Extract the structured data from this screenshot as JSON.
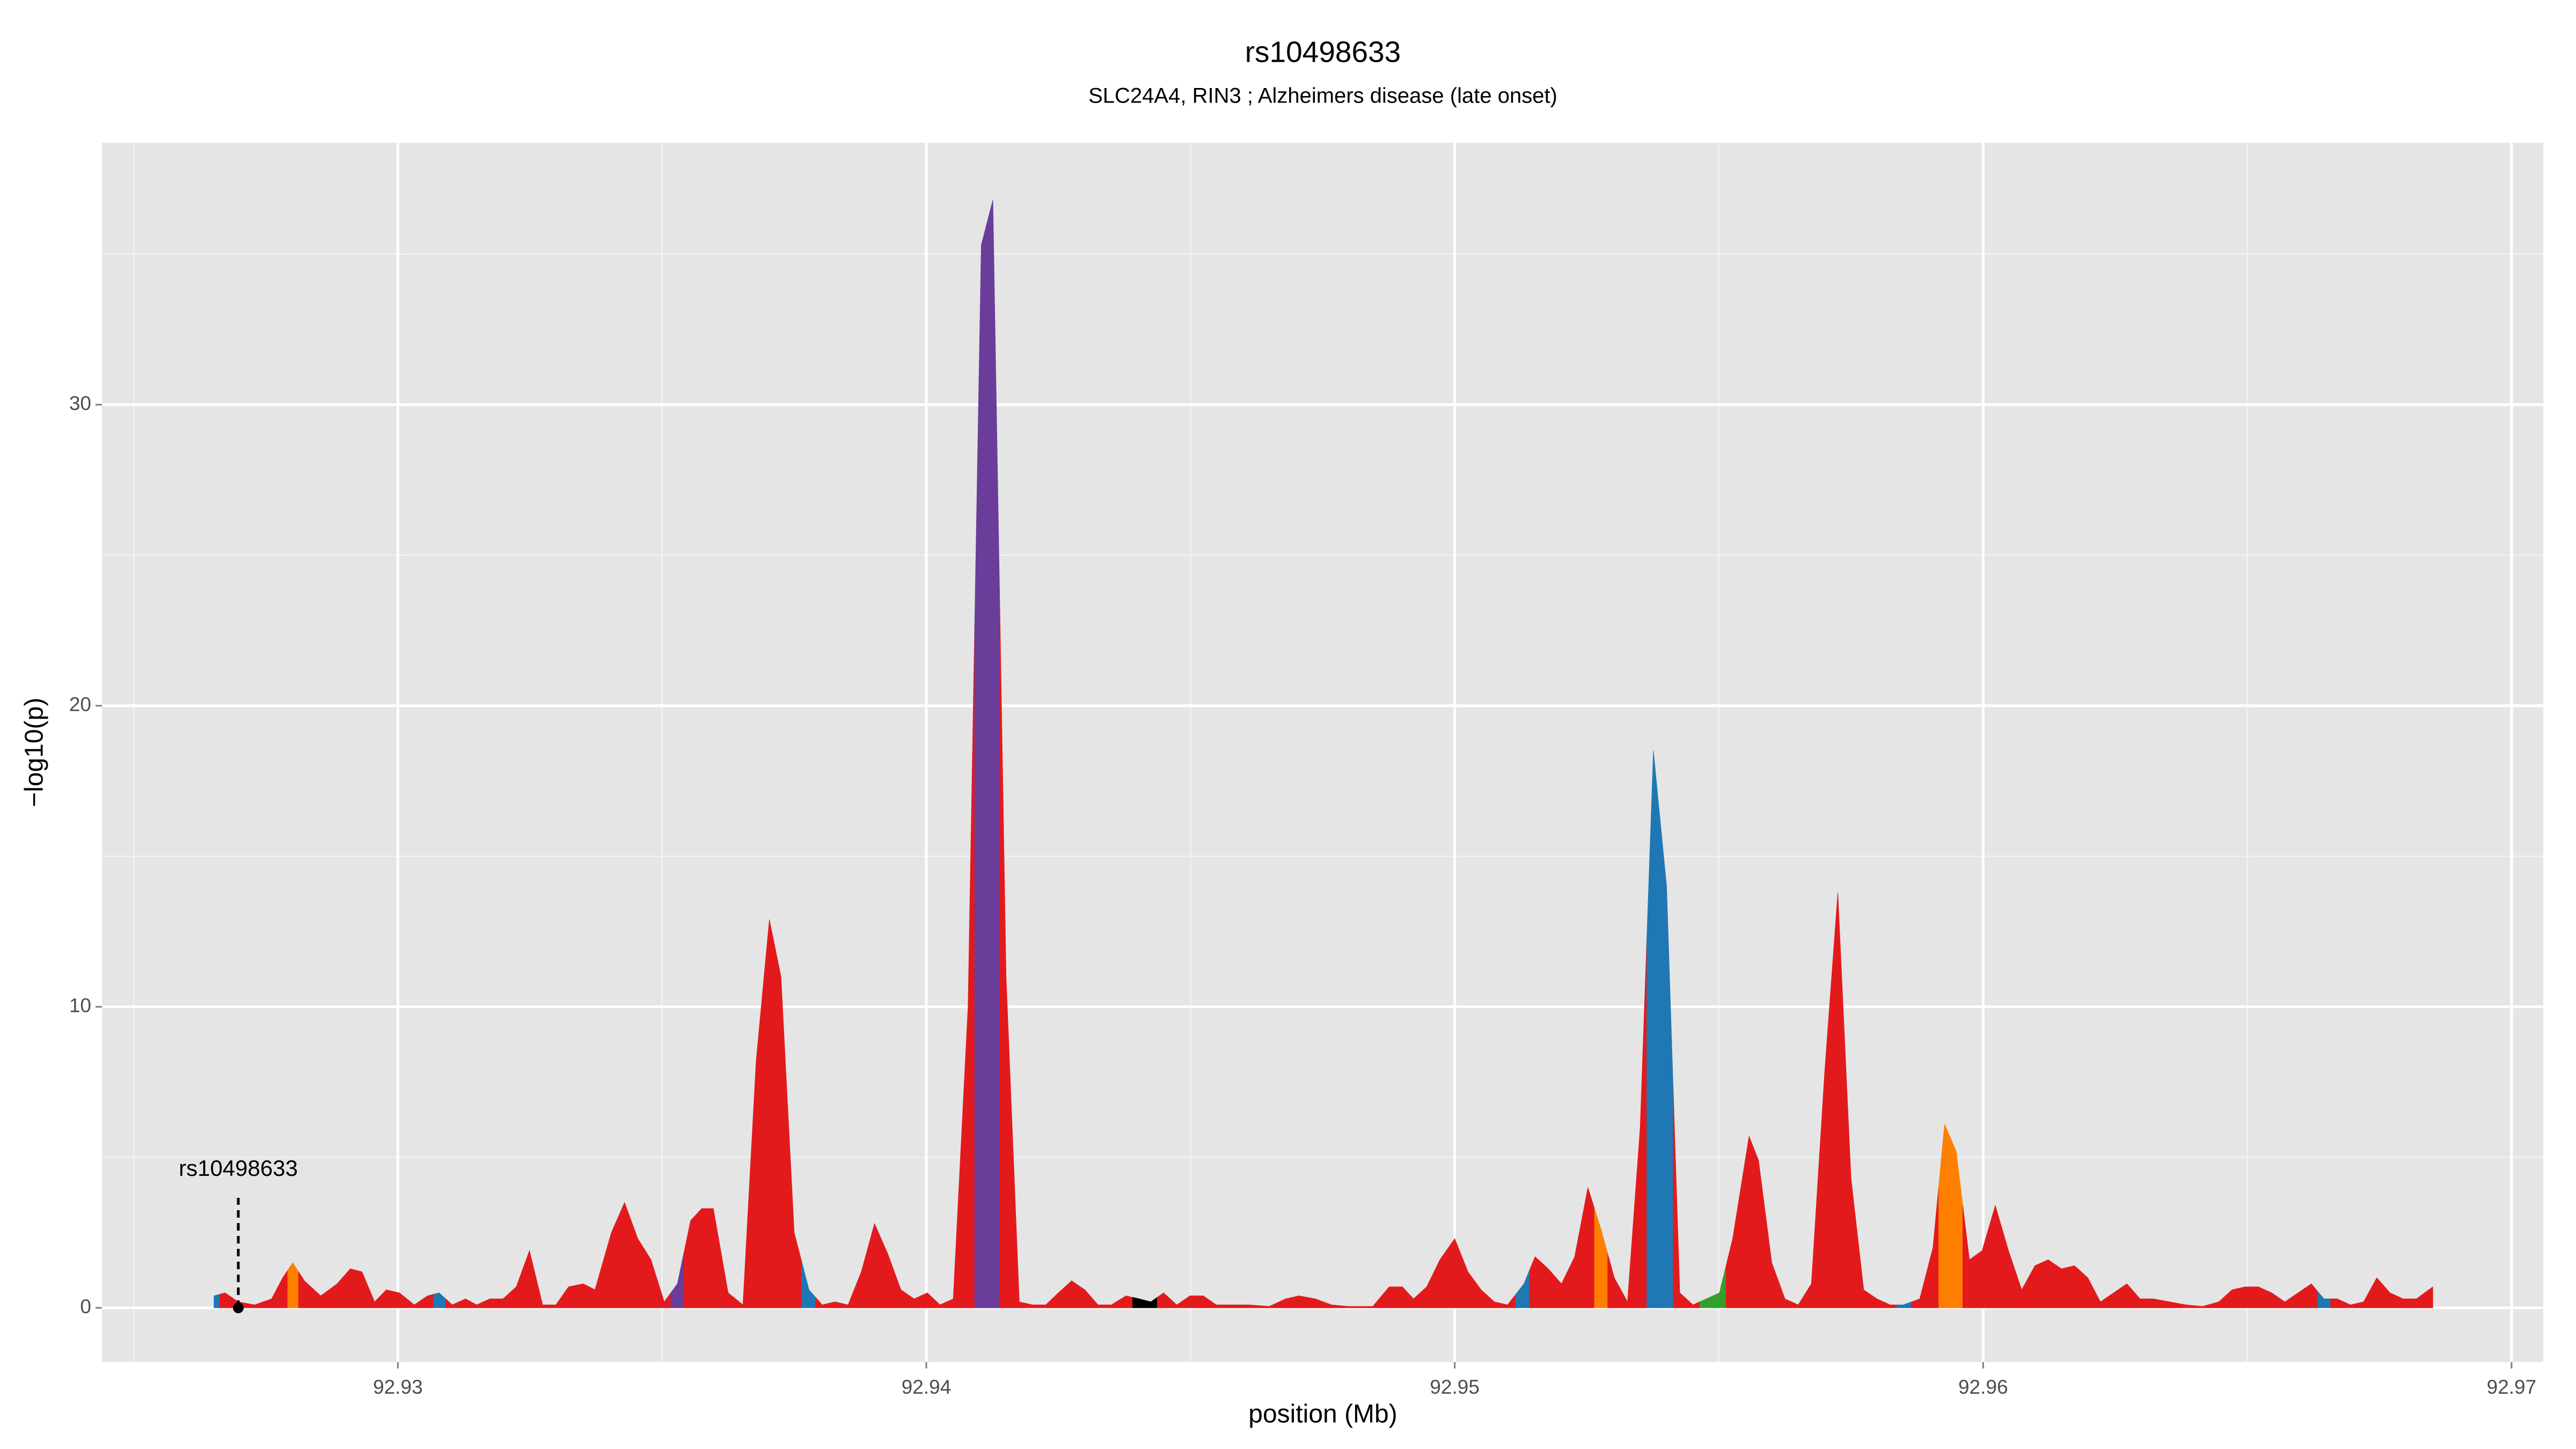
{
  "chart_data": {
    "type": "area",
    "title": "rs10498633",
    "subtitle": "SLC24A4, RIN3 ; Alzheimers disease (late onset)",
    "x_label": "position (Mb)",
    "y_label": "−log10(p)",
    "xlim": [
      92.9244,
      92.9706
    ],
    "ylim": [
      -1.8,
      38.7
    ],
    "xticks": [
      92.93,
      92.94,
      92.95,
      92.96,
      92.97
    ],
    "yticks": [
      0,
      10,
      20,
      30
    ],
    "grid": true,
    "x": [
      92.92652,
      92.92673,
      92.92698,
      92.92729,
      92.92761,
      92.92782,
      92.92801,
      92.92823,
      92.92854,
      92.92885,
      92.9291,
      92.92932,
      92.92956,
      92.92978,
      92.93003,
      92.93031,
      92.93056,
      92.93078,
      92.93103,
      92.93128,
      92.93149,
      92.93174,
      92.93199,
      92.93224,
      92.93249,
      92.93274,
      92.93299,
      92.93323,
      92.93351,
      92.93373,
      92.93404,
      92.93429,
      92.93454,
      92.93479,
      92.93504,
      92.93529,
      92.93554,
      92.93575,
      92.93597,
      92.93625,
      92.93653,
      92.93678,
      92.93703,
      92.93725,
      92.9375,
      92.93778,
      92.93803,
      92.93827,
      92.93852,
      92.93877,
      92.93902,
      92.93927,
      92.93952,
      92.93977,
      92.94002,
      92.94026,
      92.94051,
      92.94079,
      92.94104,
      92.94126,
      92.94151,
      92.94176,
      92.94201,
      92.94226,
      92.9425,
      92.94275,
      92.943,
      92.94325,
      92.9435,
      92.94378,
      92.94403,
      92.94425,
      92.94449,
      92.94474,
      92.94499,
      92.94524,
      92.94549,
      92.9458,
      92.94611,
      92.94649,
      92.9468,
      92.94705,
      92.94736,
      92.94767,
      92.94798,
      92.94845,
      92.94876,
      92.94901,
      92.94922,
      92.94947,
      92.94972,
      92.95,
      92.95025,
      92.9505,
      92.95075,
      92.951,
      92.95131,
      92.95152,
      92.95177,
      92.95202,
      92.95227,
      92.95252,
      92.95277,
      92.95302,
      92.95327,
      92.95351,
      92.95376,
      92.95401,
      92.95426,
      92.95451,
      92.95476,
      92.95501,
      92.95526,
      92.95557,
      92.95575,
      92.956,
      92.95625,
      92.9565,
      92.95675,
      92.957,
      92.95725,
      92.9575,
      92.95774,
      92.95799,
      92.95824,
      92.95849,
      92.9588,
      92.95905,
      92.95927,
      92.95949,
      92.95974,
      92.95998,
      92.96023,
      92.96048,
      92.96073,
      92.96098,
      92.96123,
      92.96148,
      92.96173,
      92.96198,
      92.96222,
      92.96247,
      92.96272,
      92.96297,
      92.96322,
      92.96353,
      92.96384,
      92.96415,
      92.96446,
      92.96471,
      92.96496,
      92.96521,
      92.96546,
      92.96571,
      92.96596,
      92.96621,
      92.96645,
      92.9667,
      92.96695,
      92.9672,
      92.96745,
      92.9677,
      92.96795,
      92.9682,
      92.96851
    ],
    "values": [
      0.4,
      0.5,
      0.2,
      0.1,
      0.3,
      1.0,
      1.5,
      0.9,
      0.4,
      0.8,
      1.3,
      1.2,
      0.2,
      0.6,
      0.5,
      0.1,
      0.4,
      0.5,
      0.1,
      0.3,
      0.1,
      0.3,
      0.3,
      0.7,
      1.9,
      0.1,
      0.1,
      0.7,
      0.8,
      0.6,
      2.5,
      3.5,
      2.3,
      1.6,
      0.2,
      0.8,
      2.9,
      3.3,
      3.3,
      0.5,
      0.1,
      8.2,
      12.9,
      11,
      2.5,
      0.6,
      0.1,
      0.2,
      0.1,
      1.2,
      2.8,
      1.8,
      0.6,
      0.3,
      0.5,
      0.1,
      0.3,
      10,
      35.3,
      36.8,
      11,
      0.2,
      0.1,
      0.1,
      0.5,
      0.9,
      0.6,
      0.1,
      0.1,
      0.4,
      0.3,
      0.2,
      0.5,
      0.1,
      0.4,
      0.4,
      0.1,
      0.1,
      0.1,
      0.05,
      0.3,
      0.4,
      0.3,
      0.1,
      0.05,
      0.05,
      0.7,
      0.7,
      0.3,
      0.7,
      1.6,
      2.3,
      1.2,
      0.6,
      0.2,
      0.1,
      0.8,
      1.7,
      1.3,
      0.8,
      1.7,
      4.0,
      2.6,
      1.0,
      0.2,
      6.0,
      18.5,
      14.0,
      0.5,
      0.1,
      0.3,
      0.5,
      2.3,
      5.7,
      4.9,
      1.5,
      0.3,
      0.1,
      0.8,
      7.8,
      13.8,
      4.3,
      0.6,
      0.3,
      0.1,
      0.1,
      0.3,
      2.0,
      6.1,
      5.2,
      1.6,
      1.9,
      3.4,
      1.9,
      0.6,
      1.4,
      1.6,
      1.3,
      1.4,
      1.0,
      0.2,
      0.5,
      0.8,
      0.3,
      0.3,
      0.2,
      0.1,
      0.05,
      0.2,
      0.6,
      0.7,
      0.7,
      0.5,
      0.2,
      0.5,
      0.8,
      0.3,
      0.3,
      0.1,
      0.2,
      1.0,
      0.5,
      0.3,
      0.3,
      0.7
    ],
    "colors": [
      "#1f78b4",
      "#e31a1c",
      "#e31a1c",
      "#e31a1c",
      "#e31a1c",
      "#e31a1c",
      "#ff7f00",
      "#e31a1c",
      "#e31a1c",
      "#e31a1c",
      "#e31a1c",
      "#e31a1c",
      "#e31a1c",
      "#e31a1c",
      "#e31a1c",
      "#e31a1c",
      "#e31a1c",
      "#1f78b4",
      "#e31a1c",
      "#e31a1c",
      "#e31a1c",
      "#e31a1c",
      "#e31a1c",
      "#e31a1c",
      "#e31a1c",
      "#e31a1c",
      "#e31a1c",
      "#e31a1c",
      "#e31a1c",
      "#e31a1c",
      "#e31a1c",
      "#e31a1c",
      "#e31a1c",
      "#e31a1c",
      "#e31a1c",
      "#6a3d9a",
      "#e31a1c",
      "#e31a1c",
      "#e31a1c",
      "#e31a1c",
      "#e31a1c",
      "#e31a1c",
      "#e31a1c",
      "#e31a1c",
      "#e31a1c",
      "#1f78b4",
      "#e31a1c",
      "#e31a1c",
      "#e31a1c",
      "#e31a1c",
      "#e31a1c",
      "#e31a1c",
      "#e31a1c",
      "#e31a1c",
      "#e31a1c",
      "#e31a1c",
      "#e31a1c",
      "#e31a1c",
      "#6a3d9a",
      "#6a3d9a",
      "#e31a1c",
      "#e31a1c",
      "#e31a1c",
      "#e31a1c",
      "#e31a1c",
      "#e31a1c",
      "#e31a1c",
      "#e31a1c",
      "#e31a1c",
      "#e31a1c",
      "#000000",
      "#000000",
      "#e31a1c",
      "#e31a1c",
      "#e31a1c",
      "#e31a1c",
      "#e31a1c",
      "#e31a1c",
      "#e31a1c",
      "#e31a1c",
      "#e31a1c",
      "#e31a1c",
      "#e31a1c",
      "#e31a1c",
      "#e31a1c",
      "#e31a1c",
      "#e31a1c",
      "#e31a1c",
      "#e31a1c",
      "#e31a1c",
      "#e31a1c",
      "#e31a1c",
      "#e31a1c",
      "#e31a1c",
      "#e31a1c",
      "#e31a1c",
      "#1f78b4",
      "#e31a1c",
      "#e31a1c",
      "#e31a1c",
      "#e31a1c",
      "#e31a1c",
      "#ff7f00",
      "#e31a1c",
      "#e31a1c",
      "#e31a1c",
      "#1f78b4",
      "#1f78b4",
      "#e31a1c",
      "#e31a1c",
      "#33a02c",
      "#33a02c",
      "#e31a1c",
      "#e31a1c",
      "#e31a1c",
      "#e31a1c",
      "#e31a1c",
      "#e31a1c",
      "#e31a1c",
      "#e31a1c",
      "#e31a1c",
      "#e31a1c",
      "#e31a1c",
      "#e31a1c",
      "#e31a1c",
      "#1f78b4",
      "#e31a1c",
      "#e31a1c",
      "#ff7f00",
      "#ff7f00",
      "#e31a1c",
      "#e31a1c",
      "#e31a1c",
      "#e31a1c",
      "#e31a1c",
      "#e31a1c",
      "#e31a1c",
      "#e31a1c",
      "#e31a1c",
      "#e31a1c",
      "#e31a1c",
      "#e31a1c",
      "#e31a1c",
      "#e31a1c",
      "#e31a1c",
      "#e31a1c",
      "#e31a1c",
      "#e31a1c",
      "#e31a1c",
      "#e31a1c",
      "#e31a1c",
      "#e31a1c",
      "#e31a1c",
      "#e31a1c",
      "#e31a1c",
      "#e31a1c",
      "#1f78b4",
      "#e31a1c",
      "#e31a1c",
      "#e31a1c",
      "#e31a1c",
      "#e31a1c",
      "#e31a1c",
      "#e31a1c",
      "#e31a1c",
      "#1f78b4",
      "#1f78b4"
    ],
    "annotation": {
      "text": "rs10498633",
      "x": 92.92698,
      "y": 0
    }
  }
}
